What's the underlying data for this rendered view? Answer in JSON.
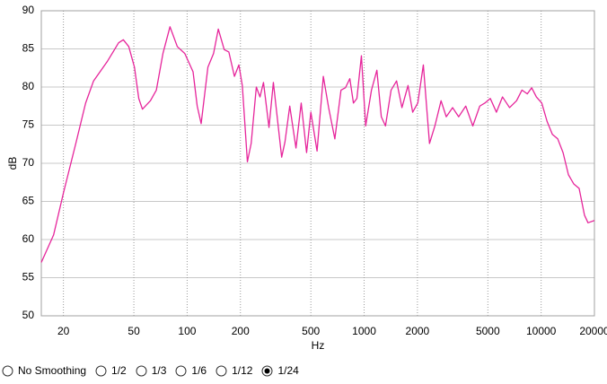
{
  "chart_data": {
    "type": "line",
    "xlabel": "Hz",
    "ylabel": "dB",
    "log_x": true,
    "grid": true,
    "color": "#e6259b",
    "x": [
      15,
      17.6,
      20,
      23.5,
      26.7,
      29.6,
      35.5,
      41,
      43.6,
      46.8,
      50.4,
      53.3,
      55.9,
      62,
      67,
      73,
      80,
      88,
      97,
      108,
      114,
      120,
      131,
      141,
      150,
      162,
      172,
      185,
      196,
      205,
      219,
      230,
      246,
      258,
      270,
      290,
      307,
      342,
      357,
      380,
      412,
      441,
      473,
      500,
      542,
      588,
      630,
      683,
      740,
      784,
      830,
      870,
      910,
      965,
      1020,
      1100,
      1180,
      1250,
      1320,
      1420,
      1525,
      1635,
      1770,
      1880,
      2010,
      2160,
      2340,
      2510,
      2720,
      2910,
      3160,
      3420,
      3750,
      4110,
      4500,
      4810,
      5160,
      5590,
      6050,
      6630,
      7260,
      7790,
      8350,
      8840,
      9400,
      10080,
      10800,
      11570,
      12410,
      13300,
      14260,
      15280,
      16390,
      17570,
      18400,
      20000
    ],
    "values": [
      57.0,
      60.6,
      66.1,
      72.6,
      77.9,
      80.8,
      83.4,
      85.8,
      86.2,
      85.3,
      82.6,
      78.5,
      77.1,
      78.2,
      79.6,
      84.4,
      87.9,
      85.3,
      84.4,
      82.0,
      77.5,
      75.2,
      82.6,
      84.4,
      87.6,
      84.9,
      84.6,
      81.4,
      82.9,
      80.2,
      70.2,
      72.6,
      80.0,
      78.7,
      80.6,
      74.7,
      80.6,
      70.8,
      72.8,
      77.5,
      72.0,
      77.9,
      71.4,
      76.7,
      71.6,
      81.4,
      77.3,
      73.2,
      79.6,
      79.9,
      81.1,
      77.9,
      78.5,
      84.1,
      74.9,
      79.6,
      82.2,
      76.1,
      74.9,
      79.6,
      80.8,
      77.3,
      80.2,
      76.7,
      77.9,
      82.9,
      72.6,
      74.9,
      78.2,
      76.1,
      77.3,
      76.1,
      77.5,
      74.9,
      77.5,
      77.9,
      78.5,
      76.7,
      78.7,
      77.3,
      78.2,
      79.6,
      79.1,
      79.9,
      78.7,
      77.9,
      75.5,
      73.8,
      73.2,
      71.4,
      68.5,
      67.3,
      66.7,
      63.2,
      62.2,
      62.5
    ],
    "xlim": [
      15,
      20000
    ],
    "xticks": [
      20,
      50,
      100,
      200,
      500,
      1000,
      2000,
      5000,
      10000,
      20000
    ],
    "ylim": [
      50,
      90
    ],
    "yticks": [
      50,
      55,
      60,
      65,
      70,
      75,
      80,
      85,
      90
    ]
  },
  "smoothing": {
    "options": [
      "No Smoothing",
      "1/2",
      "1/3",
      "1/6",
      "1/12",
      "1/24"
    ],
    "selected": 5
  }
}
